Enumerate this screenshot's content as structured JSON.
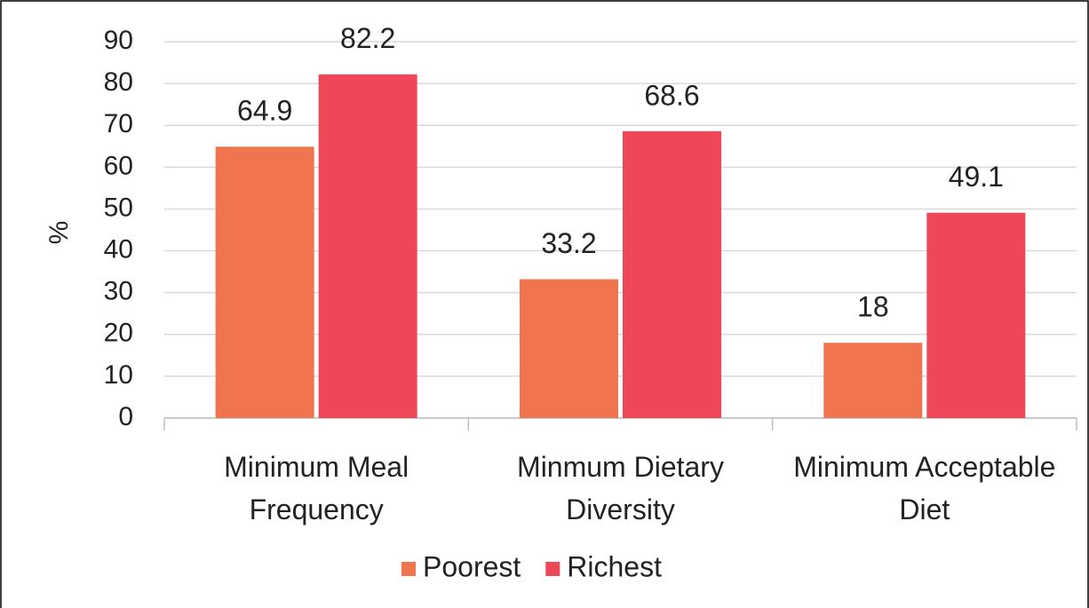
{
  "chart_data": {
    "type": "bar",
    "y_label": "%",
    "categories": [
      "Minimum Meal Frequency",
      "Minmum Dietary Diversity",
      "Minimum Acceptable Diet"
    ],
    "series": [
      {
        "name": "Poorest",
        "color": "#f0744d",
        "values": [
          64.9,
          33.2,
          18
        ]
      },
      {
        "name": "Richest",
        "color": "#ee4757",
        "values": [
          82.2,
          68.6,
          49.1
        ]
      }
    ],
    "ylim": [
      0,
      90
    ],
    "yticks": [
      0,
      10,
      20,
      30,
      40,
      50,
      60,
      70,
      80,
      90
    ],
    "grid": true,
    "legend": "bottom"
  }
}
